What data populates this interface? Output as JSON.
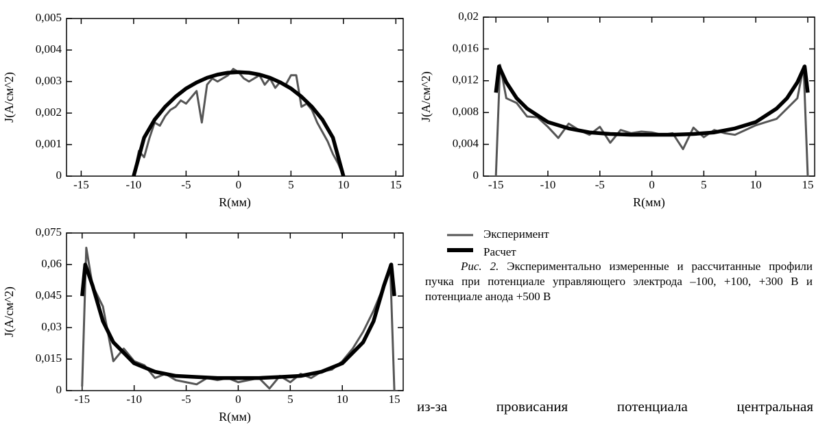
{
  "chart_data": [
    {
      "type": "line",
      "xlabel": "R(мм)",
      "ylabel": "J(A/см^2)",
      "xlim": [
        -16.4,
        15.7
      ],
      "ylim": [
        0,
        0.005
      ],
      "xticks": [
        -15,
        -10,
        -5,
        0,
        5,
        10,
        15
      ],
      "yticks": [
        0,
        {
          "value": 0.001,
          "label": "0,001"
        },
        {
          "value": 0.002,
          "label": "0,002"
        },
        {
          "value": 0.003,
          "label": "0,003"
        },
        {
          "value": 0.004,
          "label": "0,004"
        },
        {
          "value": 0.005,
          "label": "0,005"
        }
      ],
      "series": [
        {
          "name": "Эксперимент",
          "color": "#555555",
          "x": [
            -10,
            -9.5,
            -9,
            -8.5,
            -8,
            -7.5,
            -7,
            -6.5,
            -6,
            -5.5,
            -5,
            -4.5,
            -4,
            -3.5,
            -3,
            -2.5,
            -2,
            -1.5,
            -1,
            -0.5,
            0,
            0.5,
            1,
            1.5,
            2,
            2.5,
            3,
            3.5,
            4,
            4.5,
            5,
            5.5,
            6,
            6.5,
            7,
            7.5,
            8,
            8.5,
            9,
            9.5,
            10
          ],
          "values": [
            0,
            0.0008,
            0.0006,
            0.0012,
            0.0017,
            0.0016,
            0.0019,
            0.0021,
            0.0022,
            0.0024,
            0.0023,
            0.0025,
            0.0027,
            0.0017,
            0.0029,
            0.0031,
            0.003,
            0.0031,
            0.0032,
            0.0034,
            0.0033,
            0.0031,
            0.003,
            0.0031,
            0.0032,
            0.0029,
            0.0031,
            0.0028,
            0.003,
            0.0029,
            0.0032,
            0.0032,
            0.0022,
            0.0023,
            0.0021,
            0.0017,
            0.0014,
            0.0011,
            0.0007,
            0.0004,
            0
          ]
        },
        {
          "name": "Расчет",
          "color": "#000000",
          "x": [
            -10,
            -9,
            -8,
            -7,
            -6,
            -5,
            -4,
            -3,
            -2,
            -1,
            0,
            1,
            2,
            3,
            4,
            5,
            6,
            7,
            8,
            9,
            10
          ],
          "values": [
            0,
            0.00122,
            0.00179,
            0.0022,
            0.00252,
            0.00278,
            0.00297,
            0.00312,
            0.00322,
            0.00328,
            0.0033,
            0.00328,
            0.00322,
            0.00312,
            0.00297,
            0.00278,
            0.00252,
            0.0022,
            0.00179,
            0.00122,
            0
          ]
        }
      ]
    },
    {
      "type": "line",
      "xlabel": "R(мм)",
      "ylabel": "J(A/см^2)",
      "xlim": [
        -16.2,
        15.66
      ],
      "ylim": [
        0,
        0.02
      ],
      "xticks": [
        -15,
        -10,
        -5,
        0,
        5,
        10,
        15
      ],
      "yticks": [
        0,
        {
          "value": 0.004,
          "label": "0,004"
        },
        {
          "value": 0.008,
          "label": "0,008"
        },
        {
          "value": 0.012,
          "label": "0,012"
        },
        {
          "value": 0.016,
          "label": "0,016"
        },
        {
          "value": 0.02,
          "label": "0,02"
        }
      ],
      "series": [
        {
          "color": "#555555",
          "x": [
            -15,
            -14.6,
            -14,
            -13,
            -12,
            -11,
            -10,
            -9,
            -8,
            -7,
            -6,
            -5,
            -4,
            -3,
            -2,
            -1,
            0,
            1,
            2,
            3,
            4,
            5,
            6,
            7,
            8,
            9,
            10,
            11,
            12,
            13,
            14,
            14.6,
            15
          ],
          "values": [
            0,
            0.014,
            0.0098,
            0.0092,
            0.0075,
            0.0074,
            0.0062,
            0.0048,
            0.0066,
            0.0058,
            0.0052,
            0.0062,
            0.0042,
            0.0058,
            0.0054,
            0.0056,
            0.0055,
            0.0052,
            0.0054,
            0.0034,
            0.0061,
            0.0049,
            0.0058,
            0.0054,
            0.0052,
            0.0058,
            0.0064,
            0.0068,
            0.0072,
            0.0085,
            0.0098,
            0.0138,
            0
          ]
        },
        {
          "color": "#000000",
          "x": [
            -15,
            -14.7,
            -14,
            -13,
            -12,
            -10,
            -8,
            -6,
            -4,
            -2,
            0,
            2,
            4,
            6,
            8,
            10,
            12,
            13,
            14,
            14.7,
            15
          ],
          "values": [
            0.0105,
            0.0138,
            0.0118,
            0.0098,
            0.0085,
            0.0068,
            0.006,
            0.0055,
            0.0053,
            0.0052,
            0.0052,
            0.0052,
            0.0053,
            0.0055,
            0.006,
            0.0068,
            0.0085,
            0.0098,
            0.0118,
            0.0138,
            0.0105
          ]
        }
      ]
    },
    {
      "type": "line",
      "xlabel": "R(мм)",
      "ylabel": "J(A/см^2)",
      "xlim": [
        -16.5,
        15.85
      ],
      "ylim": [
        0,
        0.075
      ],
      "xticks": [
        -15,
        -10,
        -5,
        0,
        5,
        10,
        15
      ],
      "yticks": [
        0,
        {
          "value": 0.015,
          "label": "0,015"
        },
        {
          "value": 0.03,
          "label": "0,03"
        },
        {
          "value": 0.045,
          "label": "0,045"
        },
        {
          "value": 0.06,
          "label": "0,06"
        },
        {
          "value": 0.075,
          "label": "0,075"
        }
      ],
      "series": [
        {
          "color": "#555555",
          "x": [
            -15,
            -14.6,
            -14,
            -13,
            -12,
            -11,
            -10,
            -9,
            -8,
            -7,
            -6,
            -5,
            -4,
            -3,
            -2,
            -1,
            0,
            1,
            2,
            3,
            4,
            5,
            6,
            7,
            8,
            9,
            10,
            11,
            12,
            13,
            14,
            14.6,
            15
          ],
          "values": [
            0.002,
            0.068,
            0.05,
            0.04,
            0.014,
            0.02,
            0.014,
            0.012,
            0.006,
            0.008,
            0.005,
            0.004,
            0.003,
            0.006,
            0.005,
            0.006,
            0.004,
            0.005,
            0.006,
            0.001,
            0.007,
            0.004,
            0.008,
            0.006,
            0.009,
            0.01,
            0.014,
            0.02,
            0.028,
            0.038,
            0.05,
            0.06,
            0
          ]
        },
        {
          "color": "#000000",
          "x": [
            -15,
            -14.7,
            -14,
            -13,
            -12,
            -10,
            -8,
            -6,
            -4,
            -2,
            0,
            2,
            4,
            6,
            8,
            10,
            12,
            13,
            14,
            14.7,
            15
          ],
          "values": [
            0.045,
            0.06,
            0.05,
            0.033,
            0.023,
            0.013,
            0.009,
            0.007,
            0.0065,
            0.006,
            0.006,
            0.006,
            0.0065,
            0.007,
            0.009,
            0.013,
            0.023,
            0.033,
            0.05,
            0.06,
            0.045
          ]
        }
      ]
    }
  ],
  "caption": {
    "label": "Рис. 2.",
    "text": "Экспериментально измеренные и рассчитанные профили пучка при потенциале управляющего электрода –100, +100, +300 В и потенциале анода +500 В"
  },
  "body_text": "из-за провисания потенциала центральная"
}
